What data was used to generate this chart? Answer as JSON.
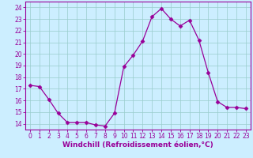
{
  "x": [
    0,
    1,
    2,
    3,
    4,
    5,
    6,
    7,
    8,
    9,
    10,
    11,
    12,
    13,
    14,
    15,
    16,
    17,
    18,
    19,
    20,
    21,
    22,
    23
  ],
  "y": [
    17.3,
    17.2,
    16.1,
    14.9,
    14.1,
    14.1,
    14.1,
    13.9,
    13.8,
    14.9,
    18.9,
    19.9,
    21.1,
    23.2,
    23.9,
    23.0,
    22.4,
    22.9,
    21.2,
    18.4,
    15.9,
    15.4,
    15.4,
    15.3
  ],
  "line_color": "#990099",
  "marker": "D",
  "marker_size": 2.5,
  "background_color": "#cceeff",
  "grid_color": "#99cccc",
  "xlabel": "Windchill (Refroidissement éolien,°C)",
  "xlim": [
    -0.5,
    23.5
  ],
  "ylim": [
    13.5,
    24.5
  ],
  "yticks": [
    14,
    15,
    16,
    17,
    18,
    19,
    20,
    21,
    22,
    23,
    24
  ],
  "xticks": [
    0,
    1,
    2,
    3,
    4,
    5,
    6,
    7,
    8,
    9,
    10,
    11,
    12,
    13,
    14,
    15,
    16,
    17,
    18,
    19,
    20,
    21,
    22,
    23
  ],
  "tick_fontsize": 5.5,
  "xlabel_fontsize": 6.5,
  "axis_color": "#990099",
  "tick_color": "#990099",
  "spine_color": "#990099"
}
